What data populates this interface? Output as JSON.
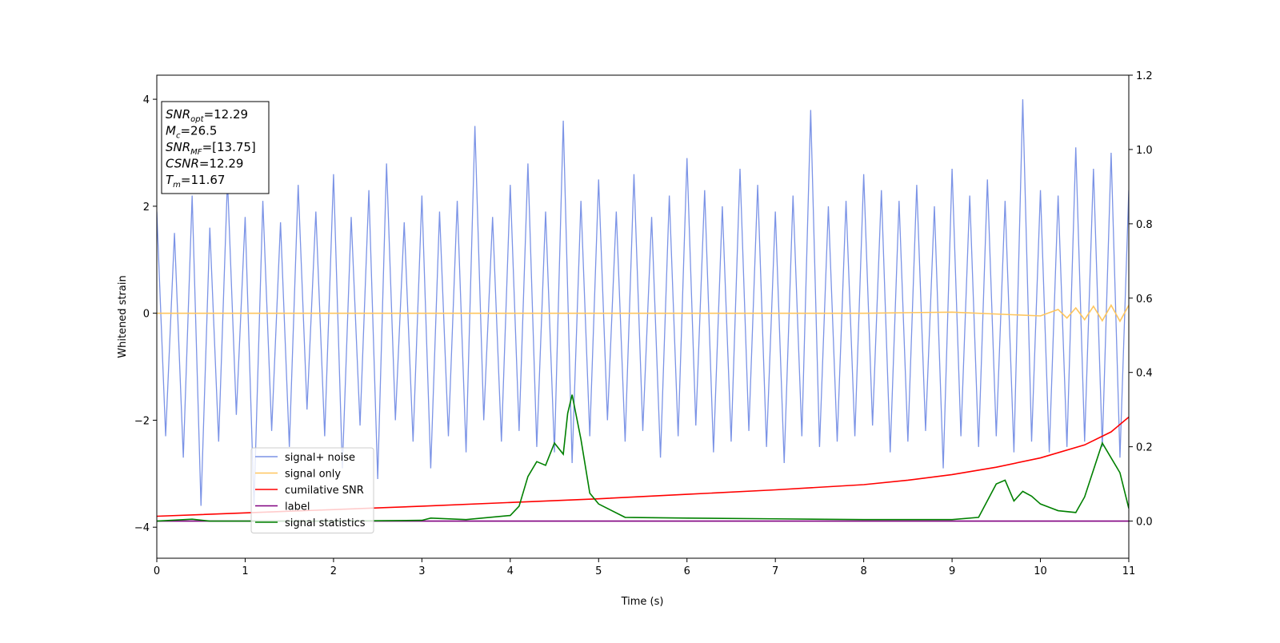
{
  "chart_data": {
    "type": "line",
    "xlabel": "Time (s)",
    "ylabel": "Whitened strain",
    "xlim": [
      0,
      11
    ],
    "xticks": [
      0,
      1,
      2,
      3,
      4,
      5,
      6,
      7,
      8,
      9,
      10,
      11
    ],
    "ylim": [
      -4.58,
      4.45
    ],
    "yticks": [
      {
        "value": -4,
        "label": "−4"
      },
      {
        "value": -2,
        "label": "−2"
      },
      0,
      2,
      4
    ],
    "y2lim": [
      -0.1,
      1.2
    ],
    "y2ticks": [
      {
        "value": 0,
        "label": "0.0"
      },
      {
        "value": 0.2,
        "label": "0.2"
      },
      {
        "value": 0.4,
        "label": "0.4"
      },
      {
        "value": 0.6,
        "label": "0.6"
      },
      {
        "value": 0.8,
        "label": "0.8"
      },
      {
        "value": 1.0,
        "label": "1.0"
      },
      {
        "value": 1.2,
        "label": "1.2"
      }
    ],
    "legend": true,
    "annotation": [
      {
        "main": "SNR",
        "sub": "opt",
        "rest": "=12.29"
      },
      {
        "main": "M",
        "sub": "c",
        "rest": "=26.5"
      },
      {
        "main": "SNR",
        "sub": "MF",
        "rest": "=[13.75]"
      },
      {
        "main": "CSNR",
        "rest": "=12.29"
      },
      {
        "main": "T",
        "sub": "m",
        "rest": "=11.67"
      }
    ],
    "series": [
      {
        "name": "signal+ noise",
        "color": "#7b93e6",
        "axis": "y",
        "x": [
          0,
          0.1,
          0.2,
          0.3,
          0.4,
          0.5,
          0.6,
          0.7,
          0.8,
          0.9,
          1,
          1.1,
          1.2,
          1.3,
          1.4,
          1.5,
          1.6,
          1.7,
          1.8,
          1.9,
          2,
          2.1,
          2.2,
          2.3,
          2.4,
          2.5,
          2.6,
          2.7,
          2.8,
          2.9,
          3,
          3.1,
          3.2,
          3.3,
          3.4,
          3.5,
          3.6,
          3.7,
          3.8,
          3.9,
          4,
          4.1,
          4.2,
          4.3,
          4.4,
          4.5,
          4.6,
          4.7,
          4.8,
          4.9,
          5,
          5.1,
          5.2,
          5.3,
          5.4,
          5.5,
          5.6,
          5.7,
          5.8,
          5.9,
          6,
          6.1,
          6.2,
          6.3,
          6.4,
          6.5,
          6.6,
          6.7,
          6.8,
          6.9,
          7,
          7.1,
          7.2,
          7.3,
          7.4,
          7.5,
          7.6,
          7.7,
          7.8,
          7.9,
          8,
          8.1,
          8.2,
          8.3,
          8.4,
          8.5,
          8.6,
          8.7,
          8.8,
          8.9,
          9,
          9.1,
          9.2,
          9.3,
          9.4,
          9.5,
          9.6,
          9.7,
          9.8,
          9.9,
          10,
          10.1,
          10.2,
          10.3,
          10.4,
          10.5,
          10.6,
          10.7,
          10.8,
          10.9,
          11
        ],
        "values": [
          1.9,
          -2.3,
          1.5,
          -2.7,
          2.2,
          -3.6,
          1.6,
          -2.4,
          2.5,
          -1.9,
          1.8,
          -3.6,
          2.1,
          -2.2,
          1.7,
          -2.5,
          2.4,
          -1.8,
          1.9,
          -2.3,
          2.6,
          -2.9,
          1.8,
          -2.1,
          2.3,
          -3.1,
          2.8,
          -2.0,
          1.7,
          -2.4,
          2.2,
          -2.9,
          1.9,
          -2.3,
          2.1,
          -2.6,
          3.5,
          -2.0,
          1.8,
          -2.4,
          2.4,
          -2.2,
          2.8,
          -2.5,
          1.9,
          -2.6,
          3.6,
          -2.8,
          2.1,
          -2.3,
          2.5,
          -2.0,
          1.9,
          -2.4,
          2.6,
          -2.2,
          1.8,
          -2.7,
          2.2,
          -2.3,
          2.9,
          -2.1,
          2.3,
          -2.6,
          2.0,
          -2.4,
          2.7,
          -2.2,
          2.4,
          -2.5,
          1.9,
          -2.8,
          2.2,
          -2.3,
          3.8,
          -2.5,
          2.0,
          -2.4,
          2.1,
          -2.3,
          2.6,
          -2.1,
          2.3,
          -2.6,
          2.1,
          -2.4,
          2.4,
          -2.2,
          2.0,
          -2.9,
          2.7,
          -2.3,
          2.2,
          -2.5,
          2.5,
          -2.3,
          2.1,
          -2.6,
          4.0,
          -2.4,
          2.3,
          -2.6,
          2.2,
          -2.5,
          3.1,
          -2.4,
          2.7,
          -2.5,
          3.0,
          -2.7,
          2.3
        ]
      },
      {
        "name": "signal only",
        "color": "#ffc65e",
        "axis": "y",
        "x": [
          0,
          2,
          4,
          6,
          8,
          9,
          10,
          10.2,
          10.3,
          10.4,
          10.5,
          10.6,
          10.7,
          10.8,
          10.9,
          11
        ],
        "values": [
          0,
          0,
          0,
          0,
          0,
          0.02,
          -0.05,
          0.07,
          -0.09,
          0.1,
          -0.12,
          0.13,
          -0.14,
          0.15,
          -0.15,
          0.15
        ]
      },
      {
        "name": "cumilative SNR",
        "color": "#ff0000",
        "axis": "y2",
        "x": [
          0,
          1,
          2,
          3,
          4,
          5,
          6,
          7,
          8,
          8.5,
          9,
          9.5,
          10,
          10.5,
          10.8,
          11
        ],
        "values": [
          0.013,
          0.022,
          0.031,
          0.04,
          0.05,
          0.06,
          0.072,
          0.084,
          0.098,
          0.11,
          0.125,
          0.145,
          0.17,
          0.205,
          0.24,
          0.28
        ]
      },
      {
        "name": "label",
        "color": "#800080",
        "axis": "y2",
        "x": [
          0,
          11
        ],
        "values": [
          0,
          0
        ]
      },
      {
        "name": "signal statistics",
        "color": "#008000",
        "axis": "y2",
        "x": [
          0,
          0.4,
          0.6,
          1,
          2,
          3,
          3.1,
          3.5,
          4,
          4.1,
          4.2,
          4.3,
          4.4,
          4.5,
          4.6,
          4.65,
          4.7,
          4.8,
          4.9,
          5,
          5.3,
          6,
          7,
          8,
          9,
          9.3,
          9.5,
          9.6,
          9.7,
          9.8,
          9.9,
          10,
          10.2,
          10.4,
          10.5,
          10.7,
          10.9,
          11
        ],
        "values": [
          0,
          0.005,
          0,
          0,
          0,
          0.002,
          0.008,
          0.004,
          0.015,
          0.04,
          0.12,
          0.16,
          0.15,
          0.21,
          0.18,
          0.29,
          0.34,
          0.22,
          0.075,
          0.046,
          0.01,
          0.008,
          0.006,
          0.004,
          0.004,
          0.01,
          0.1,
          0.11,
          0.054,
          0.08,
          0.067,
          0.046,
          0.028,
          0.023,
          0.065,
          0.21,
          0.13,
          0.034
        ]
      }
    ]
  }
}
